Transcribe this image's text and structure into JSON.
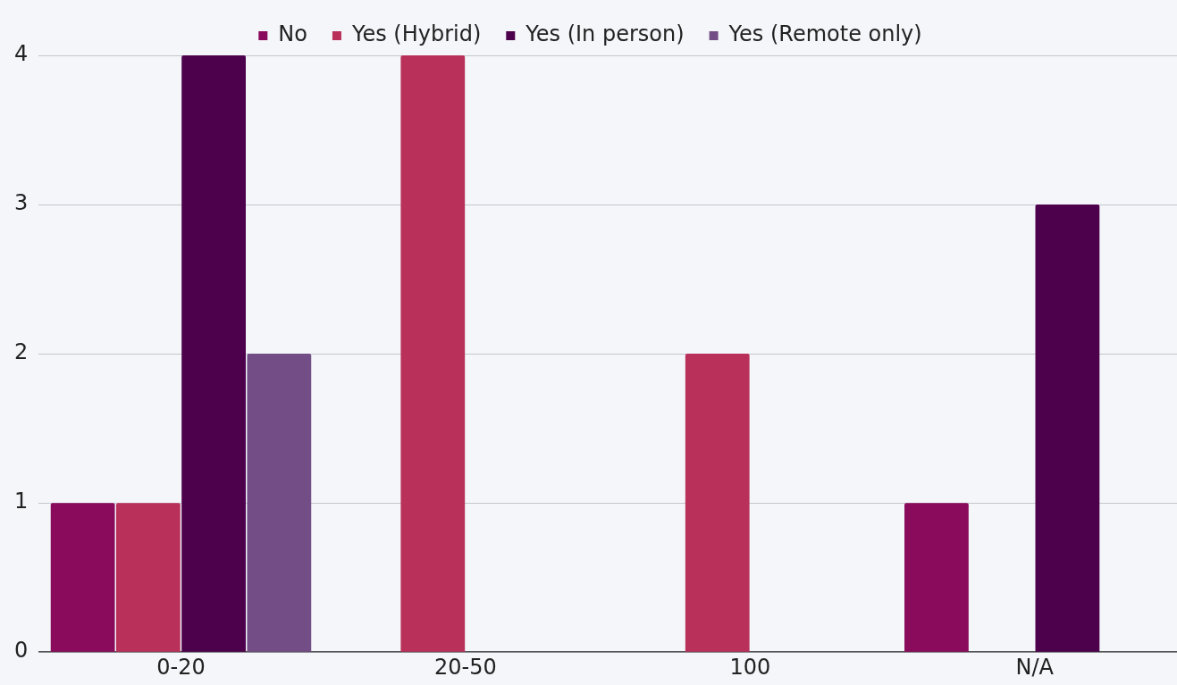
{
  "chart_data": {
    "type": "bar",
    "categories": [
      "0-20",
      "20-50",
      "100",
      "N/A"
    ],
    "series": [
      {
        "name": "No",
        "color": "#8a0a5b",
        "values": [
          1,
          0,
          0,
          1
        ]
      },
      {
        "name": "Yes (Hybrid)",
        "color": "#b9305a",
        "values": [
          1,
          4,
          2,
          0
        ]
      },
      {
        "name": "Yes (In person)",
        "color": "#4d004b",
        "values": [
          4,
          0,
          0,
          3
        ]
      },
      {
        "name": "Yes (Remote only)",
        "color": "#734e86",
        "values": [
          2,
          0,
          0,
          0
        ]
      }
    ],
    "ylim": [
      0,
      4
    ],
    "yticks": [
      0,
      1,
      2,
      3,
      4
    ],
    "grid": "y",
    "legend": "top"
  }
}
